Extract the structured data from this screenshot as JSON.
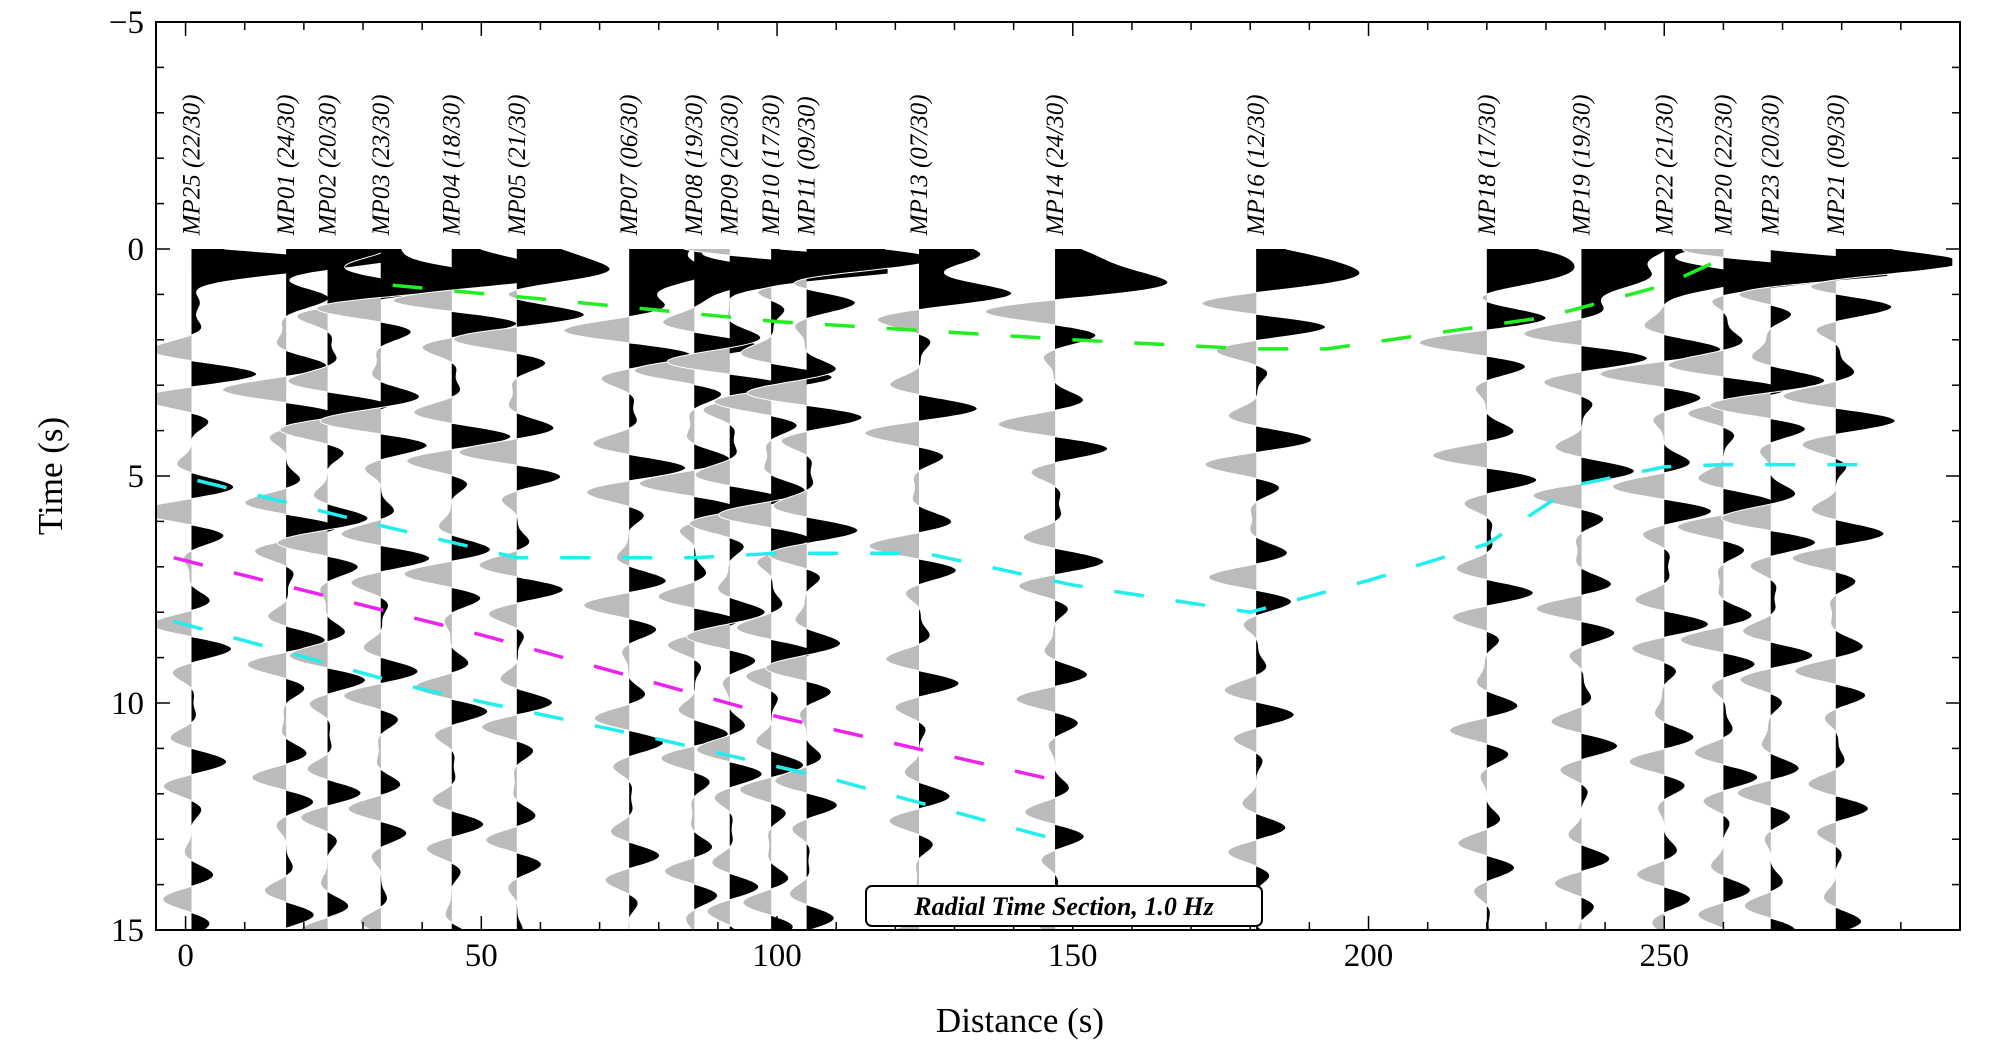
{
  "chart_data": {
    "type": "line",
    "title": "Radial Time Section, 1.0 Hz",
    "xlabel": "Distance (s)",
    "ylabel": "Time (s)",
    "xlim": [
      -5,
      300
    ],
    "ylim": [
      -5,
      15
    ],
    "y_inverted": true,
    "xticks": [
      0,
      50,
      100,
      150,
      200,
      250
    ],
    "xtick_labels": [
      "0",
      "50",
      "100",
      "150",
      "200",
      "250"
    ],
    "yticks": [
      -5,
      0,
      5,
      10,
      15
    ],
    "ytick_labels": [
      "−5",
      "0",
      "5",
      "10",
      "15"
    ],
    "stations": [
      {
        "name": "MP25",
        "count": "(22/30)",
        "x": 1
      },
      {
        "name": "MP01",
        "count": "(24/30)",
        "x": 17
      },
      {
        "name": "MP02",
        "count": "(20/30)",
        "x": 24
      },
      {
        "name": "MP03",
        "count": "(23/30)",
        "x": 33
      },
      {
        "name": "MP04",
        "count": "(18/30)",
        "x": 45
      },
      {
        "name": "MP05",
        "count": "(21/30)",
        "x": 56
      },
      {
        "name": "MP07",
        "count": "(06/30)",
        "x": 75
      },
      {
        "name": "MP08",
        "count": "(19/30)",
        "x": 86
      },
      {
        "name": "MP09",
        "count": "(20/30)",
        "x": 92
      },
      {
        "name": "MP10",
        "count": "(17/30)",
        "x": 99
      },
      {
        "name": "MP11",
        "count": "(09/30)",
        "x": 105
      },
      {
        "name": "MP13",
        "count": "(07/30)",
        "x": 124
      },
      {
        "name": "MP14",
        "count": "(24/30)",
        "x": 147
      },
      {
        "name": "MP16",
        "count": "(12/30)",
        "x": 181
      },
      {
        "name": "MP18",
        "count": "(17/30)",
        "x": 220
      },
      {
        "name": "MP19",
        "count": "(19/30)",
        "x": 236
      },
      {
        "name": "MP22",
        "count": "(21/30)",
        "x": 250
      },
      {
        "name": "MP20",
        "count": "(22/30)",
        "x": 260
      },
      {
        "name": "MP23",
        "count": "(20/30)",
        "x": 268
      },
      {
        "name": "MP21",
        "count": "(09/30)",
        "x": 279
      }
    ],
    "series": [
      {
        "name": "green phase",
        "color": "#22ee22",
        "points": [
          [
            35,
            0.8
          ],
          [
            60,
            1.1
          ],
          [
            100,
            1.6
          ],
          [
            150,
            2.0
          ],
          [
            180,
            2.2
          ],
          [
            193,
            2.2
          ],
          [
            230,
            1.5
          ],
          [
            250,
            0.8
          ],
          [
            260,
            0.2
          ]
        ]
      },
      {
        "name": "cyan phase early",
        "color": "#22eeee",
        "points": [
          [
            2,
            5.1
          ],
          [
            30,
            6.0
          ],
          [
            56,
            6.8
          ],
          [
            75,
            6.8
          ],
          [
            86,
            6.8
          ],
          [
            100,
            6.7
          ],
          [
            125,
            6.7
          ],
          [
            150,
            7.4
          ],
          [
            180,
            8.0
          ],
          [
            200,
            7.3
          ],
          [
            220,
            6.5
          ],
          [
            235,
            5.2
          ],
          [
            250,
            4.8
          ],
          [
            260,
            4.75
          ],
          [
            285,
            4.75
          ]
        ]
      },
      {
        "name": "magenta phase",
        "color": "#ee22ee",
        "points": [
          [
            -2,
            6.8
          ],
          [
            50,
            8.5
          ],
          [
            100,
            10.3
          ],
          [
            147,
            11.7
          ]
        ]
      },
      {
        "name": "cyan phase late",
        "color": "#22eeee",
        "points": [
          [
            -2,
            8.2
          ],
          [
            40,
            9.7
          ],
          [
            80,
            10.8
          ],
          [
            110,
            11.7
          ],
          [
            147,
            13.0
          ]
        ]
      }
    ]
  },
  "colors": {
    "positive_fill": "#000000",
    "negative_fill": "#bbbbbb",
    "frame": "#000000"
  }
}
